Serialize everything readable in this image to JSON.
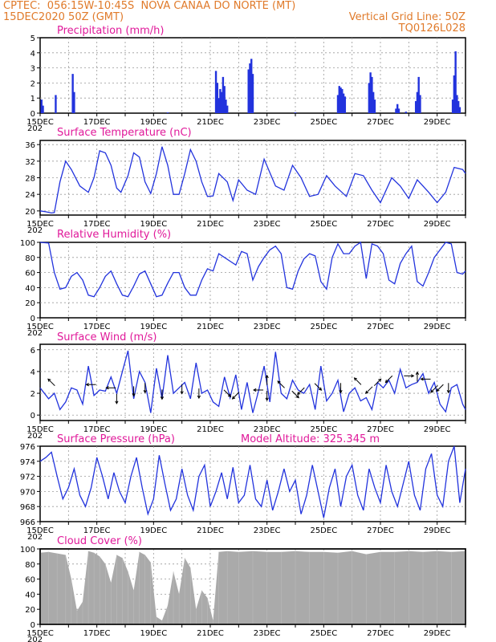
{
  "header": {
    "line1": "CPTEC:  056:15W-10:45S  NOVA CANAA DO NORTE (MT)",
    "line2": "15DEC2020 50Z (GMT)",
    "grid_note": "Vertical Grid Line: 50Z",
    "code": "TQ0126L028"
  },
  "x_tick_labels": [
    "15DEC",
    "17DEC",
    "19DEC",
    "21DEC",
    "23DEC",
    "25DEC",
    "27DEC",
    "29DEC"
  ],
  "year_fragment": "202",
  "colors": {
    "line": "#2233dd",
    "title": "#e0199a",
    "header": "#e07a2a",
    "cloud": "#aaaaaa"
  },
  "chart_data": [
    {
      "id": "precip",
      "type": "bar",
      "title": "Precipitation (mm/h)",
      "ylim": [
        0,
        5
      ],
      "yticks": [
        0,
        1,
        2,
        3,
        4,
        5
      ],
      "x_unit": "days since 15DEC",
      "x_range": [
        0,
        15
      ],
      "bars": [
        [
          0.05,
          0.9
        ],
        [
          0.1,
          0.5
        ],
        [
          0.55,
          1.2
        ],
        [
          1.15,
          2.6
        ],
        [
          1.2,
          1.4
        ],
        [
          6.2,
          2.8
        ],
        [
          6.25,
          2.0
        ],
        [
          6.3,
          1.0
        ],
        [
          6.35,
          1.6
        ],
        [
          6.4,
          1.4
        ],
        [
          6.45,
          2.4
        ],
        [
          6.5,
          1.8
        ],
        [
          6.55,
          0.9
        ],
        [
          6.6,
          0.5
        ],
        [
          7.35,
          2.9
        ],
        [
          7.4,
          3.3
        ],
        [
          7.45,
          3.6
        ],
        [
          7.5,
          2.6
        ],
        [
          10.5,
          1.2
        ],
        [
          10.55,
          1.8
        ],
        [
          10.6,
          1.7
        ],
        [
          10.65,
          1.6
        ],
        [
          10.7,
          1.3
        ],
        [
          10.75,
          1.1
        ],
        [
          11.6,
          2.0
        ],
        [
          11.65,
          2.7
        ],
        [
          11.7,
          2.4
        ],
        [
          11.75,
          1.4
        ],
        [
          11.8,
          0.9
        ],
        [
          12.55,
          0.3
        ],
        [
          12.6,
          0.6
        ],
        [
          12.65,
          0.3
        ],
        [
          13.25,
          0.8
        ],
        [
          13.3,
          1.4
        ],
        [
          13.35,
          2.4
        ],
        [
          13.4,
          1.2
        ],
        [
          14.55,
          0.9
        ],
        [
          14.6,
          2.5
        ],
        [
          14.65,
          4.1
        ],
        [
          14.7,
          1.2
        ],
        [
          14.75,
          0.8
        ],
        [
          14.8,
          0.4
        ],
        [
          4.5,
          0.05
        ],
        [
          9.0,
          0.05
        ],
        [
          12.9,
          0.1
        ]
      ]
    },
    {
      "id": "temp",
      "type": "line",
      "title": "Surface Temperature (nC)",
      "ylim": [
        19,
        37
      ],
      "yticks": [
        20,
        24,
        28,
        32,
        36
      ],
      "x": [
        0,
        0.2,
        0.4,
        0.5,
        0.7,
        0.9,
        1.1,
        1.4,
        1.6,
        1.7,
        1.9,
        2.1,
        2.3,
        2.5,
        2.7,
        2.85,
        3.1,
        3.3,
        3.5,
        3.7,
        3.9,
        4.1,
        4.3,
        4.5,
        4.7,
        4.9,
        5.1,
        5.3,
        5.5,
        5.7,
        5.9,
        6.1,
        6.3,
        6.6,
        6.8,
        7.0,
        7.3,
        7.6,
        7.9,
        8.3,
        8.6,
        8.9,
        9.2,
        9.5,
        9.8,
        10.1,
        10.4,
        10.8,
        11.1,
        11.4,
        11.7,
        12.0,
        12.4,
        12.7,
        13.0,
        13.3,
        13.7,
        14.0,
        14.3,
        14.6,
        14.9,
        15
      ],
      "values": [
        20,
        19.8,
        19.5,
        19.6,
        27,
        32,
        30,
        26,
        25,
        24.5,
        28,
        34.5,
        34,
        31,
        25.5,
        24.5,
        28.5,
        34,
        33,
        27,
        24.2,
        29,
        35.5,
        31,
        24,
        24,
        29,
        34.8,
        32,
        27,
        23.5,
        23.6,
        29,
        27,
        22.5,
        27.5,
        25,
        24,
        32.5,
        26,
        25,
        31,
        28,
        23.5,
        24,
        28.5,
        26,
        23.5,
        29,
        28.5,
        25,
        22,
        28,
        26,
        23,
        27.5,
        24.5,
        22,
        24.5,
        30.5,
        30,
        29
      ]
    },
    {
      "id": "rh",
      "type": "line",
      "title": "Relative Humidity (%)",
      "ylim": [
        0,
        100
      ],
      "yticks": [
        0,
        20,
        40,
        60,
        80,
        100
      ],
      "x": [
        0,
        0.3,
        0.5,
        0.7,
        0.9,
        1.1,
        1.3,
        1.5,
        1.7,
        1.9,
        2.1,
        2.3,
        2.5,
        2.7,
        2.9,
        3.1,
        3.3,
        3.5,
        3.7,
        3.9,
        4.1,
        4.3,
        4.5,
        4.7,
        4.9,
        5.1,
        5.3,
        5.5,
        5.7,
        5.9,
        6.1,
        6.3,
        6.5,
        6.7,
        6.9,
        7.1,
        7.3,
        7.5,
        7.7,
        7.9,
        8.1,
        8.3,
        8.5,
        8.7,
        8.9,
        9.1,
        9.3,
        9.5,
        9.7,
        9.9,
        10.1,
        10.3,
        10.5,
        10.7,
        10.9,
        11.1,
        11.3,
        11.5,
        11.7,
        11.9,
        12.1,
        12.3,
        12.5,
        12.7,
        12.9,
        13.1,
        13.3,
        13.5,
        13.7,
        13.9,
        14.1,
        14.3,
        14.5,
        14.7,
        14.9,
        15
      ],
      "values": [
        100,
        99,
        60,
        38,
        40,
        55,
        60,
        50,
        30,
        28,
        40,
        55,
        62,
        45,
        30,
        28,
        42,
        58,
        62,
        45,
        28,
        30,
        46,
        60,
        60,
        40,
        30,
        30,
        50,
        65,
        62,
        85,
        80,
        75,
        70,
        88,
        85,
        50,
        68,
        80,
        90,
        95,
        85,
        40,
        38,
        62,
        78,
        85,
        82,
        48,
        38,
        80,
        98,
        85,
        85,
        95,
        100,
        52,
        98,
        95,
        85,
        50,
        45,
        72,
        85,
        95,
        48,
        42,
        60,
        80,
        90,
        100,
        98,
        60,
        58,
        62
      ]
    },
    {
      "id": "wind",
      "type": "line",
      "title": "Surface Wind (m/s)",
      "ylim": [
        -0.5,
        6.5
      ],
      "yticks": [
        0,
        2,
        4,
        6
      ],
      "x": [
        0,
        0.3,
        0.5,
        0.7,
        0.9,
        1.1,
        1.3,
        1.5,
        1.7,
        1.9,
        2.1,
        2.3,
        2.5,
        2.7,
        2.9,
        3.1,
        3.3,
        3.5,
        3.7,
        3.9,
        4.1,
        4.3,
        4.5,
        4.7,
        4.9,
        5.1,
        5.3,
        5.5,
        5.7,
        5.9,
        6.1,
        6.3,
        6.5,
        6.7,
        6.9,
        7.1,
        7.3,
        7.5,
        7.7,
        7.9,
        8.1,
        8.3,
        8.5,
        8.7,
        8.9,
        9.1,
        9.3,
        9.5,
        9.7,
        9.9,
        10.1,
        10.3,
        10.5,
        10.7,
        10.9,
        11.1,
        11.3,
        11.5,
        11.7,
        11.9,
        12.1,
        12.3,
        12.5,
        12.7,
        12.9,
        13.1,
        13.3,
        13.5,
        13.7,
        13.9,
        14.1,
        14.3,
        14.5,
        14.7,
        14.9,
        15
      ],
      "values": [
        2.5,
        1.5,
        2.0,
        0.5,
        1.2,
        2.5,
        2.3,
        1.0,
        4.5,
        1.8,
        2.3,
        2.2,
        3.5,
        2.0,
        4.0,
        5.9,
        1.5,
        4.0,
        3.0,
        0.2,
        4.3,
        1.5,
        5.5,
        2.0,
        2.5,
        3.0,
        1.5,
        4.8,
        2.0,
        2.3,
        1.2,
        0.8,
        3.5,
        1.6,
        3.7,
        0.5,
        3.0,
        0.2,
        2.2,
        4.5,
        1.2,
        5.8,
        2.0,
        1.5,
        3.2,
        2.3,
        2.0,
        2.8,
        0.5,
        4.5,
        1.3,
        2.0,
        3.2,
        0.3,
        2.0,
        2.5,
        1.3,
        1.6,
        0.5,
        3.0,
        2.5,
        3.2,
        2.0,
        4.2,
        2.5,
        2.8,
        3.0,
        3.8,
        2.0,
        3.0,
        1.0,
        0.3,
        2.5,
        2.8,
        1.0,
        0.5
      ],
      "arrows": [
        {
          "x": 0.4,
          "y": 3.0,
          "dir": "ul"
        },
        {
          "x": 1.8,
          "y": 2.8,
          "dir": "l"
        },
        {
          "x": 2.5,
          "y": 2.5,
          "dir": "l"
        },
        {
          "x": 2.7,
          "y": 1.5,
          "dir": "d"
        },
        {
          "x": 3.3,
          "y": 2.2,
          "dir": "d"
        },
        {
          "x": 3.7,
          "y": 2.5,
          "dir": "d"
        },
        {
          "x": 4.3,
          "y": 1.9,
          "dir": "d"
        },
        {
          "x": 5.0,
          "y": 2.4,
          "dir": "d"
        },
        {
          "x": 5.6,
          "y": 2.0,
          "dir": "d"
        },
        {
          "x": 6.6,
          "y": 2.0,
          "dir": "dr"
        },
        {
          "x": 6.9,
          "y": 1.8,
          "dir": "dl"
        },
        {
          "x": 7.7,
          "y": 2.3,
          "dir": "l"
        },
        {
          "x": 8.0,
          "y": 3.2,
          "dir": "u"
        },
        {
          "x": 8.0,
          "y": 1.8,
          "dir": "d"
        },
        {
          "x": 8.5,
          "y": 2.8,
          "dir": "ul"
        },
        {
          "x": 9.0,
          "y": 1.9,
          "dir": "dr"
        },
        {
          "x": 9.2,
          "y": 2.2,
          "dir": "dl"
        },
        {
          "x": 9.8,
          "y": 2.6,
          "dir": "dr"
        },
        {
          "x": 10.6,
          "y": 2.5,
          "dir": "d"
        },
        {
          "x": 11.2,
          "y": 3.1,
          "dir": "ul"
        },
        {
          "x": 11.6,
          "y": 2.3,
          "dir": "dl"
        },
        {
          "x": 11.9,
          "y": 3.0,
          "dir": "ur"
        },
        {
          "x": 12.3,
          "y": 3.3,
          "dir": "dl"
        },
        {
          "x": 13.0,
          "y": 3.6,
          "dir": "r"
        },
        {
          "x": 13.3,
          "y": 3.5,
          "dir": "u"
        },
        {
          "x": 13.6,
          "y": 3.3,
          "dir": "l"
        },
        {
          "x": 13.9,
          "y": 2.4,
          "dir": "dl"
        },
        {
          "x": 14.1,
          "y": 2.5,
          "dir": "dl"
        },
        {
          "x": 14.4,
          "y": 2.5,
          "dir": "d"
        }
      ]
    },
    {
      "id": "pres",
      "type": "line",
      "title": "Surface Pressure (hPa)",
      "extra_label": "Model Altitude: 325.345 m",
      "ylim": [
        966,
        976
      ],
      "yticks": [
        966,
        968,
        970,
        972,
        974,
        976
      ],
      "x": [
        0,
        0.2,
        0.4,
        0.6,
        0.8,
        1.0,
        1.2,
        1.4,
        1.6,
        1.8,
        2.0,
        2.2,
        2.4,
        2.6,
        2.8,
        3.0,
        3.2,
        3.4,
        3.6,
        3.8,
        4.0,
        4.2,
        4.4,
        4.6,
        4.8,
        5.0,
        5.2,
        5.4,
        5.6,
        5.8,
        6.0,
        6.2,
        6.4,
        6.6,
        6.8,
        7.0,
        7.2,
        7.4,
        7.6,
        7.8,
        8.0,
        8.2,
        8.4,
        8.6,
        8.8,
        9.0,
        9.2,
        9.4,
        9.6,
        9.8,
        10.0,
        10.2,
        10.4,
        10.6,
        10.8,
        11.0,
        11.2,
        11.4,
        11.6,
        11.8,
        12.0,
        12.2,
        12.4,
        12.6,
        12.8,
        13.0,
        13.2,
        13.4,
        13.6,
        13.8,
        14.0,
        14.2,
        14.4,
        14.6,
        14.8,
        15
      ],
      "values": [
        974,
        974.5,
        975.2,
        972,
        969,
        970.5,
        973,
        969.5,
        968,
        970.5,
        974.5,
        972,
        969,
        972.5,
        970,
        968.5,
        972,
        974.5,
        970.5,
        967,
        969,
        974.8,
        971,
        967.5,
        969,
        973,
        969.5,
        967.5,
        972,
        973.5,
        968,
        970,
        972.5,
        969,
        973.2,
        968.5,
        969.5,
        973.5,
        969,
        968,
        971.5,
        967.5,
        970,
        973,
        970,
        971.5,
        967,
        969.5,
        973.5,
        970,
        966.5,
        970.5,
        973,
        968,
        972,
        973.5,
        969.5,
        967.5,
        973,
        970.5,
        968.5,
        973.5,
        970,
        968,
        971,
        974,
        969.5,
        967.5,
        973,
        975,
        969.5,
        968,
        974,
        976,
        968.5,
        973
      ]
    },
    {
      "id": "cloud",
      "type": "area",
      "title": "Cloud Cover (%)",
      "ylim": [
        0,
        100
      ],
      "yticks": [
        0,
        20,
        40,
        60,
        80,
        100
      ],
      "x": [
        0,
        0.3,
        0.6,
        0.9,
        1.1,
        1.3,
        1.5,
        1.7,
        1.9,
        2.1,
        2.3,
        2.5,
        2.7,
        2.9,
        3.1,
        3.3,
        3.5,
        3.7,
        3.9,
        4.1,
        4.3,
        4.5,
        4.7,
        4.9,
        5.1,
        5.3,
        5.5,
        5.7,
        5.9,
        6.1,
        6.3,
        6.6,
        7.0,
        7.5,
        8.0,
        8.5,
        9.0,
        9.5,
        10.0,
        10.5,
        11.0,
        11.5,
        12.0,
        12.5,
        13.0,
        13.5,
        14.0,
        14.5,
        15
      ],
      "values": [
        95,
        96,
        94,
        92,
        60,
        18,
        30,
        97,
        95,
        90,
        80,
        55,
        92,
        88,
        70,
        45,
        96,
        92,
        82,
        10,
        5,
        25,
        70,
        40,
        88,
        75,
        20,
        45,
        35,
        5,
        96,
        97,
        96,
        97,
        96,
        96,
        97,
        96,
        96,
        95,
        97,
        93,
        96,
        96,
        97,
        96,
        97,
        96,
        97
      ]
    }
  ]
}
